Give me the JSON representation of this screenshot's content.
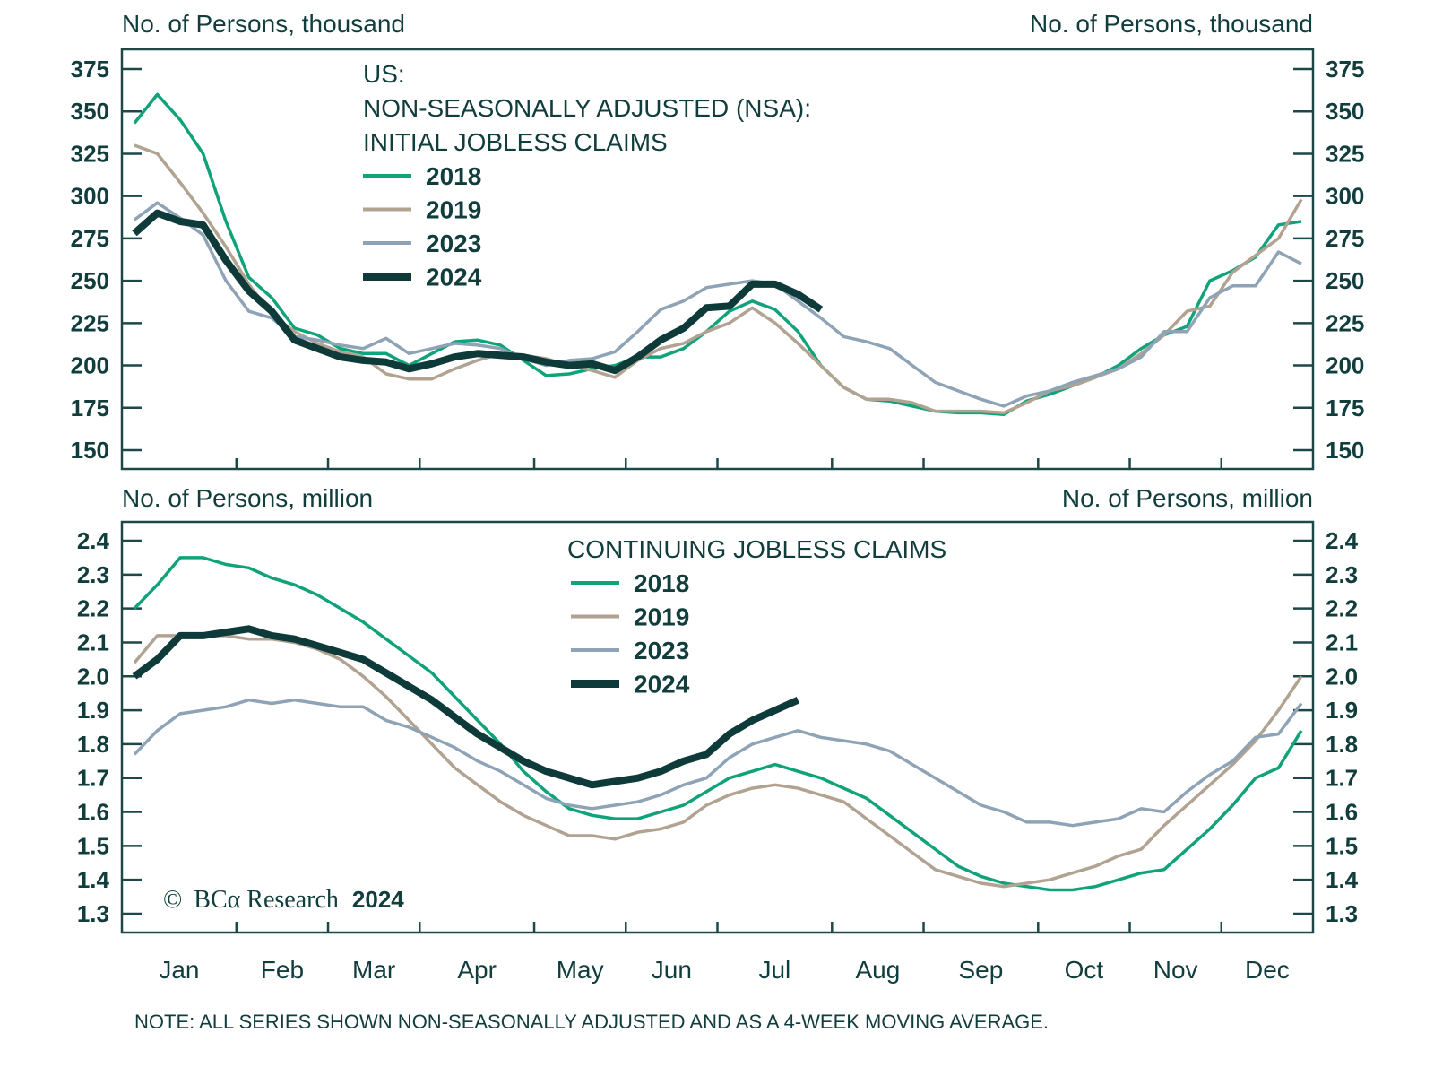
{
  "colors": {
    "s2018": "#10a37a",
    "s2019": "#b1a291",
    "s2023": "#8ea3b5",
    "s2024": "#0f3a3a",
    "text": "#123d3d"
  },
  "footer_note": "NOTE: ALL SERIES SHOWN NON-SEASONALLY ADJUSTED AND AS A 4-WEEK MOVING AVERAGE.",
  "copyright": {
    "symbol": "©",
    "brand": "BCα Research",
    "year": "2024"
  },
  "chart_data": [
    {
      "type": "line",
      "id": "initial",
      "title_lines": [
        "US:",
        "NON-SEASONALLY ADJUSTED (NSA):",
        "INITIAL JOBLESS CLAIMS"
      ],
      "ylabel_left": "No. of Persons, thousand",
      "ylabel_right": "No. of Persons, thousand",
      "ylim": [
        150,
        375
      ],
      "yticks": [
        150,
        175,
        200,
        225,
        250,
        275,
        300,
        325,
        350,
        375
      ],
      "ytick_labels": [
        "150",
        "175",
        "200",
        "225",
        "250",
        "275",
        "300",
        "325",
        "350",
        "375"
      ],
      "x_unit": "week of year",
      "legend": "top-left",
      "series": [
        {
          "name": "2018",
          "color_key": "s2018",
          "values": [
            343,
            360,
            345,
            325,
            285,
            252,
            240,
            222,
            218,
            210,
            207,
            207,
            200,
            207,
            214,
            215,
            212,
            203,
            194,
            195,
            198,
            200,
            205,
            205,
            210,
            220,
            232,
            238,
            233,
            220,
            200,
            187,
            180,
            179,
            176,
            173,
            172,
            172,
            171,
            179,
            183,
            188,
            193,
            200,
            210,
            218,
            223,
            250,
            256,
            264,
            283,
            285
          ]
        },
        {
          "name": "2019",
          "color_key": "s2019",
          "values": [
            330,
            325,
            308,
            290,
            270,
            248,
            230,
            220,
            213,
            208,
            205,
            195,
            192,
            192,
            198,
            203,
            207,
            206,
            204,
            200,
            197,
            193,
            203,
            210,
            213,
            220,
            225,
            234,
            225,
            213,
            200,
            187,
            180,
            180,
            178,
            173,
            173,
            173,
            172,
            178,
            185,
            188,
            193,
            198,
            207,
            218,
            232,
            235,
            255,
            265,
            275,
            298
          ]
        },
        {
          "name": "2023",
          "color_key": "s2023",
          "values": [
            286,
            296,
            287,
            277,
            250,
            232,
            228,
            217,
            215,
            212,
            210,
            216,
            207,
            210,
            213,
            212,
            210,
            204,
            200,
            203,
            204,
            208,
            220,
            233,
            238,
            246,
            248,
            250,
            248,
            238,
            228,
            217,
            214,
            210,
            200,
            190,
            185,
            180,
            176,
            182,
            185,
            190,
            194,
            198,
            205,
            220,
            220,
            240,
            247,
            247,
            267,
            260
          ]
        },
        {
          "name": "2024",
          "color_key": "s2024",
          "values": [
            278,
            290,
            285,
            283,
            262,
            244,
            232,
            215,
            210,
            205,
            203,
            202,
            198,
            201,
            205,
            207,
            206,
            205,
            202,
            200,
            201,
            197,
            205,
            215,
            222,
            234,
            235,
            248,
            248,
            242,
            233
          ]
        }
      ]
    },
    {
      "type": "line",
      "id": "continuing",
      "title_lines": [
        "CONTINUING JOBLESS CLAIMS"
      ],
      "ylabel_left": "No. of Persons, million",
      "ylabel_right": "No. of Persons, million",
      "ylim": [
        1.3,
        2.4
      ],
      "yticks": [
        1.3,
        1.4,
        1.5,
        1.6,
        1.7,
        1.8,
        1.9,
        2.0,
        2.1,
        2.2,
        2.3,
        2.4
      ],
      "ytick_labels": [
        "1.3",
        "1.4",
        "1.5",
        "1.6",
        "1.7",
        "1.8",
        "1.9",
        "2.0",
        "2.1",
        "2.2",
        "2.3",
        "2.4"
      ],
      "x_unit": "week of year",
      "legend": "top-center",
      "series": [
        {
          "name": "2018",
          "color_key": "s2018",
          "values": [
            2.2,
            2.27,
            2.35,
            2.35,
            2.33,
            2.32,
            2.29,
            2.27,
            2.24,
            2.2,
            2.16,
            2.11,
            2.06,
            2.01,
            1.94,
            1.87,
            1.8,
            1.72,
            1.66,
            1.61,
            1.59,
            1.58,
            1.58,
            1.6,
            1.62,
            1.66,
            1.7,
            1.72,
            1.74,
            1.72,
            1.7,
            1.67,
            1.64,
            1.59,
            1.54,
            1.49,
            1.44,
            1.41,
            1.39,
            1.38,
            1.37,
            1.37,
            1.38,
            1.4,
            1.42,
            1.43,
            1.49,
            1.55,
            1.62,
            1.7,
            1.73,
            1.84
          ]
        },
        {
          "name": "2019",
          "color_key": "s2019",
          "values": [
            2.04,
            2.12,
            2.12,
            2.12,
            2.12,
            2.11,
            2.11,
            2.1,
            2.08,
            2.05,
            2.0,
            1.94,
            1.87,
            1.8,
            1.73,
            1.68,
            1.63,
            1.59,
            1.56,
            1.53,
            1.53,
            1.52,
            1.54,
            1.55,
            1.57,
            1.62,
            1.65,
            1.67,
            1.68,
            1.67,
            1.65,
            1.63,
            1.58,
            1.53,
            1.48,
            1.43,
            1.41,
            1.39,
            1.38,
            1.39,
            1.4,
            1.42,
            1.44,
            1.47,
            1.49,
            1.56,
            1.62,
            1.68,
            1.74,
            1.81,
            1.9,
            2.0
          ]
        },
        {
          "name": "2023",
          "color_key": "s2023",
          "values": [
            1.77,
            1.84,
            1.89,
            1.9,
            1.91,
            1.93,
            1.92,
            1.93,
            1.92,
            1.91,
            1.91,
            1.87,
            1.85,
            1.82,
            1.79,
            1.75,
            1.72,
            1.68,
            1.64,
            1.62,
            1.61,
            1.62,
            1.63,
            1.65,
            1.68,
            1.7,
            1.76,
            1.8,
            1.82,
            1.84,
            1.82,
            1.81,
            1.8,
            1.78,
            1.74,
            1.7,
            1.66,
            1.62,
            1.6,
            1.57,
            1.57,
            1.56,
            1.57,
            1.58,
            1.61,
            1.6,
            1.66,
            1.71,
            1.75,
            1.82,
            1.83,
            1.92
          ]
        },
        {
          "name": "2024",
          "color_key": "s2024",
          "values": [
            2.0,
            2.05,
            2.12,
            2.12,
            2.13,
            2.14,
            2.12,
            2.11,
            2.09,
            2.07,
            2.05,
            2.01,
            1.97,
            1.93,
            1.88,
            1.83,
            1.79,
            1.75,
            1.72,
            1.7,
            1.68,
            1.69,
            1.7,
            1.72,
            1.75,
            1.77,
            1.83,
            1.87,
            1.9,
            1.93
          ]
        }
      ]
    }
  ],
  "x_axis": {
    "months": [
      "Jan",
      "Feb",
      "Mar",
      "Apr",
      "May",
      "Jun",
      "Jul",
      "Aug",
      "Sep",
      "Oct",
      "Nov",
      "Dec"
    ],
    "weeks_per_month": [
      5,
      4,
      4,
      5,
      4,
      4,
      5,
      4,
      5,
      4,
      4,
      4
    ]
  }
}
